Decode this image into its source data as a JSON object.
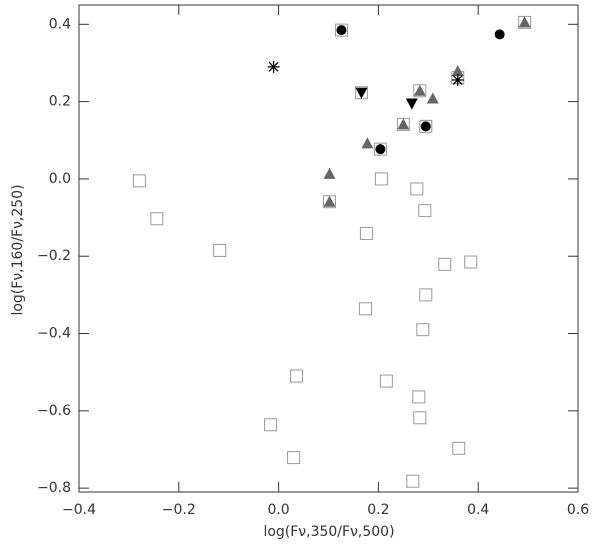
{
  "chart_data": {
    "type": "scatter",
    "x_label": "log(Fν,350/Fν,500)",
    "y_label": "log(Fν,160/Fν,250)",
    "xlim": [
      -0.4,
      0.6
    ],
    "ylim": [
      -0.81,
      0.45
    ],
    "xticks": [
      {
        "value": -0.4,
        "label": "−0.4"
      },
      {
        "value": -0.2,
        "label": "−0.2"
      },
      {
        "value": 0,
        "label": "0.0"
      },
      {
        "value": 0.2,
        "label": "0.2"
      },
      {
        "value": 0.4,
        "label": "0.4"
      },
      {
        "value": 0.6,
        "label": "0.6"
      }
    ],
    "yticks": [
      {
        "value": -0.8,
        "label": "−0.8"
      },
      {
        "value": -0.6,
        "label": "−0.6"
      },
      {
        "value": -0.4,
        "label": "−0.4"
      },
      {
        "value": -0.2,
        "label": "−0.2"
      },
      {
        "value": 0,
        "label": "0.0"
      },
      {
        "value": 0.2,
        "label": "0.2"
      },
      {
        "value": 0.4,
        "label": "0.4"
      }
    ],
    "series": [
      {
        "marker": "square-open",
        "color": "#999999",
        "x": [
          -0.279,
          -0.244,
          -0.118,
          0.206,
          0.277,
          0.293,
          0.176,
          0.333,
          0.385,
          0.295,
          0.174,
          0.289,
          0.036,
          0.216,
          0.281,
          0.283,
          -0.016,
          0.03,
          0.361,
          0.269,
          0.126,
          0.493,
          0.102,
          0.166,
          0.204,
          0.25,
          0.283,
          0.295,
          0.359
        ],
        "values": [
          -0.005,
          -0.103,
          -0.185,
          0.0,
          -0.026,
          -0.082,
          -0.141,
          -0.221,
          -0.215,
          -0.3,
          -0.336,
          -0.39,
          -0.51,
          -0.523,
          -0.564,
          -0.618,
          -0.636,
          -0.721,
          -0.697,
          -0.782,
          0.385,
          0.405,
          -0.059,
          0.223,
          0.077,
          0.141,
          0.228,
          0.136,
          0.262
        ]
      },
      {
        "marker": "triangle",
        "color": "#666666",
        "x": [
          0.102,
          0.102,
          0.178,
          0.25,
          0.283,
          0.309,
          0.359,
          0.493
        ],
        "values": [
          0.013,
          -0.059,
          0.092,
          0.141,
          0.228,
          0.208,
          0.279,
          0.405
        ]
      },
      {
        "marker": "circle",
        "color": "#000000",
        "x": [
          0.126,
          0.204,
          0.295,
          0.443
        ],
        "values": [
          0.385,
          0.077,
          0.136,
          0.374
        ]
      },
      {
        "marker": "triangle-down",
        "color": "#000000",
        "x": [
          0.166,
          0.267
        ],
        "values": [
          0.223,
          0.195
        ]
      },
      {
        "marker": "asterisk",
        "color": "#000000",
        "x": [
          -0.01,
          0.359
        ],
        "values": [
          0.29,
          0.256
        ]
      }
    ]
  }
}
